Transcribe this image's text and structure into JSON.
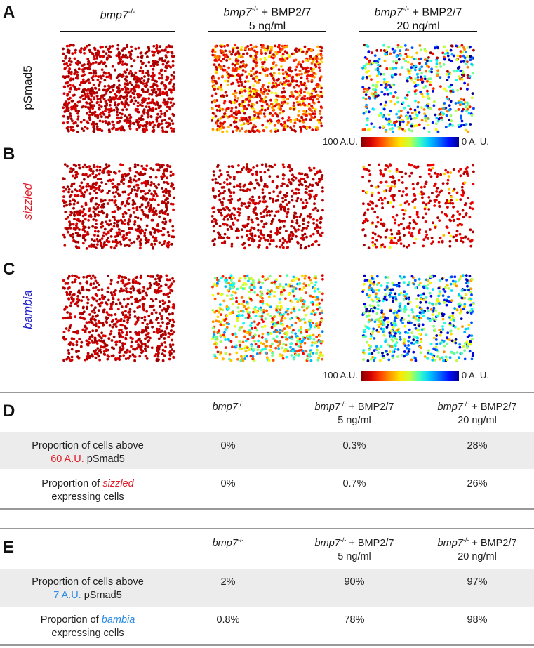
{
  "panels": {
    "A": "A",
    "B": "B",
    "C": "C",
    "D": "D",
    "E": "E"
  },
  "column_headers": [
    {
      "gene": "bmp7",
      "sup": "-/-",
      "extra": "",
      "dose": ""
    },
    {
      "gene": "bmp7",
      "sup": "-/-",
      "extra": " + BMP2/7",
      "dose": "5 ng/ml"
    },
    {
      "gene": "bmp7",
      "sup": "-/-",
      "extra": " + BMP2/7",
      "dose": "20 ng/ml"
    }
  ],
  "row_labels": {
    "A": "pSmad5",
    "B": "sizzled",
    "C": "bambia"
  },
  "colorbar": {
    "left": "100 A.U.",
    "right": "0 A. U."
  },
  "colors": {
    "sizzled": "#e0202a",
    "bambia": "#1c1cc8",
    "low": "#00008f",
    "high": "#7f0000",
    "shade": "#ececec"
  },
  "table_D": {
    "headers": [
      {
        "gene": "bmp7",
        "sup": "-/-",
        "extra": "",
        "dose": ""
      },
      {
        "gene": "bmp7",
        "sup": "-/-",
        "extra": " + BMP2/7",
        "dose": "5 ng/ml"
      },
      {
        "gene": "bmp7",
        "sup": "-/-",
        "extra": " + BMP2/7",
        "dose": "20 ng/ml"
      }
    ],
    "rows": [
      {
        "label1": "Proportion of cells above",
        "thr": "60 A.U.",
        "label2": " pSmad5",
        "values": [
          "0%",
          "0.3%",
          "28%"
        ]
      },
      {
        "label1": "Proportion of ",
        "gene": "sizzled",
        "label2": "expressing cells",
        "values": [
          "0%",
          "0.7%",
          "26%"
        ]
      }
    ]
  },
  "table_E": {
    "headers": [
      {
        "gene": "bmp7",
        "sup": "-/-",
        "extra": "",
        "dose": ""
      },
      {
        "gene": "bmp7",
        "sup": "-/-",
        "extra": " + BMP2/7",
        "dose": "5 ng/ml"
      },
      {
        "gene": "bmp7",
        "sup": "-/-",
        "extra": " + BMP2/7",
        "dose": "20 ng/ml"
      }
    ],
    "rows": [
      {
        "label1": "Proportion of cells above",
        "thr": "7 A.U.",
        "label2": " pSmad5",
        "values": [
          "2%",
          "90%",
          "97%"
        ]
      },
      {
        "label1": "Proportion of ",
        "gene": "bambia",
        "label2": "expressing cells",
        "values": [
          "0.8%",
          "78%",
          "98%"
        ]
      }
    ]
  }
}
